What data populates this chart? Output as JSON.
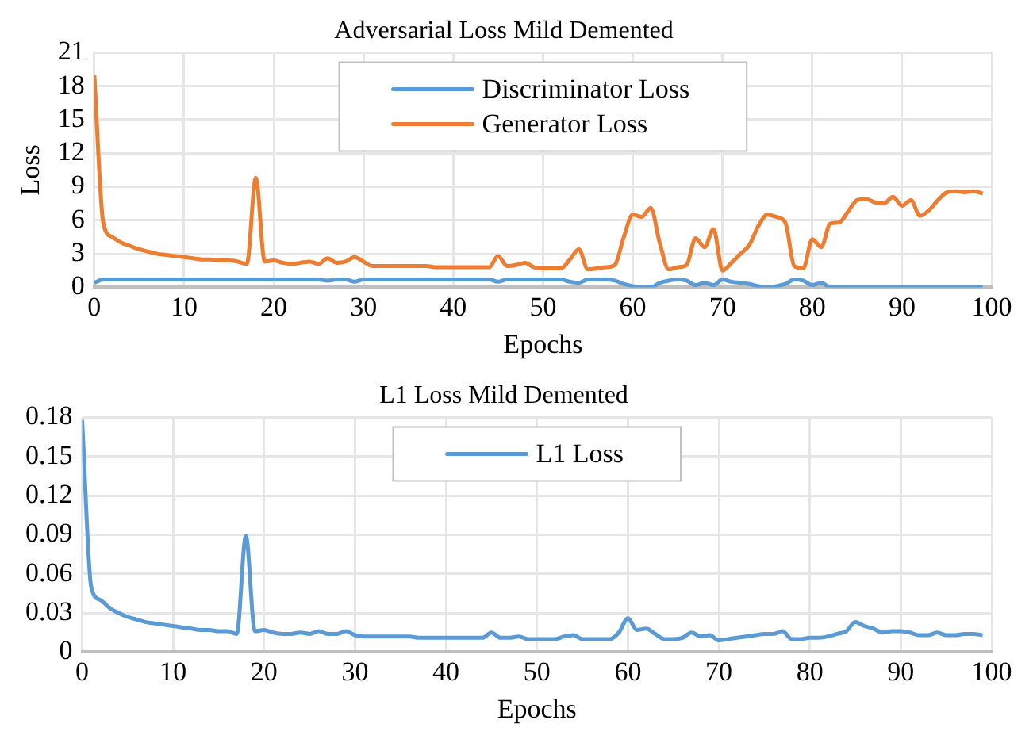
{
  "chart_data": [
    {
      "type": "line",
      "title": "Adversarial Loss Mild Demented",
      "xlabel": "Epochs",
      "ylabel": "Loss",
      "x": [
        0,
        1,
        2,
        3,
        4,
        5,
        6,
        7,
        8,
        9,
        10,
        11,
        12,
        13,
        14,
        15,
        16,
        17,
        18,
        19,
        20,
        21,
        22,
        23,
        24,
        25,
        26,
        27,
        28,
        29,
        30,
        31,
        32,
        33,
        34,
        35,
        36,
        37,
        38,
        39,
        40,
        41,
        42,
        43,
        44,
        45,
        46,
        47,
        48,
        49,
        50,
        51,
        52,
        53,
        54,
        55,
        56,
        57,
        58,
        59,
        60,
        61,
        62,
        63,
        64,
        65,
        66,
        67,
        68,
        69,
        70,
        71,
        72,
        73,
        74,
        75,
        76,
        77,
        78,
        79,
        80,
        81,
        82,
        83,
        84,
        85,
        86,
        87,
        88,
        89,
        90,
        91,
        92,
        93,
        94,
        95,
        96,
        97,
        98,
        99
      ],
      "xlim": [
        0,
        100
      ],
      "xticks": [
        0,
        10,
        20,
        30,
        40,
        50,
        60,
        70,
        80,
        90,
        100
      ],
      "ylim": [
        0,
        21
      ],
      "yticks": [
        0,
        3,
        6,
        9,
        12,
        15,
        18,
        21
      ],
      "grid": true,
      "legend": "top",
      "marker": "none",
      "line_style": "solid",
      "series": [
        {
          "name": "Discriminator Loss",
          "color": "#5b9bd5",
          "values": [
            0.4,
            0.7,
            0.7,
            0.7,
            0.7,
            0.7,
            0.7,
            0.7,
            0.7,
            0.7,
            0.7,
            0.7,
            0.7,
            0.7,
            0.7,
            0.7,
            0.7,
            0.7,
            0.7,
            0.7,
            0.7,
            0.7,
            0.7,
            0.7,
            0.7,
            0.7,
            0.6,
            0.7,
            0.7,
            0.5,
            0.7,
            0.7,
            0.7,
            0.7,
            0.7,
            0.7,
            0.7,
            0.7,
            0.7,
            0.7,
            0.7,
            0.7,
            0.7,
            0.7,
            0.7,
            0.5,
            0.7,
            0.7,
            0.7,
            0.7,
            0.7,
            0.7,
            0.7,
            0.5,
            0.4,
            0.7,
            0.7,
            0.7,
            0.6,
            0.3,
            0.1,
            0.0,
            0.0,
            0.4,
            0.6,
            0.7,
            0.6,
            0.2,
            0.4,
            0.2,
            0.7,
            0.5,
            0.4,
            0.3,
            0.1,
            0.0,
            0.1,
            0.3,
            0.7,
            0.6,
            0.2,
            0.4,
            0.0,
            0.0,
            0.0,
            0.0,
            0.0,
            0.0,
            0.0,
            0.0,
            0.0,
            0.0,
            0.0,
            0.0,
            0.0,
            0.0,
            0.0,
            0.0,
            0.0,
            0.0
          ]
        },
        {
          "name": "Generator Loss",
          "color": "#ed7d31",
          "values": [
            19,
            5.8,
            4.5,
            4.0,
            3.7,
            3.4,
            3.2,
            3.0,
            2.9,
            2.8,
            2.7,
            2.6,
            2.5,
            2.5,
            2.4,
            2.4,
            2.3,
            2.1,
            9.8,
            2.3,
            2.4,
            2.2,
            2.1,
            2.2,
            2.3,
            2.1,
            2.6,
            2.2,
            2.3,
            2.7,
            2.3,
            1.9,
            1.9,
            1.9,
            1.9,
            1.9,
            1.9,
            1.9,
            1.8,
            1.8,
            1.8,
            1.8,
            1.8,
            1.8,
            1.8,
            2.8,
            1.9,
            2.0,
            2.2,
            1.8,
            1.7,
            1.7,
            1.7,
            2.5,
            3.4,
            1.6,
            1.7,
            1.8,
            2.0,
            4.5,
            6.5,
            6.3,
            7.1,
            4.0,
            1.6,
            1.8,
            2.0,
            4.4,
            3.6,
            5.2,
            1.5,
            2.2,
            3.0,
            3.8,
            5.5,
            6.5,
            6.3,
            5.8,
            1.9,
            1.7,
            4.3,
            3.6,
            5.7,
            5.8,
            6.8,
            7.8,
            7.9,
            7.6,
            7.5,
            8.1,
            7.3,
            7.8,
            6.4,
            6.9,
            7.8,
            8.5,
            8.6,
            8.5,
            8.6,
            8.4
          ]
        }
      ]
    },
    {
      "type": "line",
      "title": "L1 Loss Mild Demented",
      "xlabel": "Epochs",
      "x": [
        0,
        1,
        2,
        3,
        4,
        5,
        6,
        7,
        8,
        9,
        10,
        11,
        12,
        13,
        14,
        15,
        16,
        17,
        18,
        19,
        20,
        21,
        22,
        23,
        24,
        25,
        26,
        27,
        28,
        29,
        30,
        31,
        32,
        33,
        34,
        35,
        36,
        37,
        38,
        39,
        40,
        41,
        42,
        43,
        44,
        45,
        46,
        47,
        48,
        49,
        50,
        51,
        52,
        53,
        54,
        55,
        56,
        57,
        58,
        59,
        60,
        61,
        62,
        63,
        64,
        65,
        66,
        67,
        68,
        69,
        70,
        71,
        72,
        73,
        74,
        75,
        76,
        77,
        78,
        79,
        80,
        81,
        82,
        83,
        84,
        85,
        86,
        87,
        88,
        89,
        90,
        91,
        92,
        93,
        94,
        95,
        96,
        97,
        98,
        99
      ],
      "xlim": [
        0,
        100
      ],
      "xticks": [
        0,
        10,
        20,
        30,
        40,
        50,
        60,
        70,
        80,
        90,
        100
      ],
      "ylim": [
        0,
        0.18
      ],
      "yticks": [
        {
          "value": 0,
          "label": "0"
        },
        {
          "value": 0.03,
          "label": "0.03"
        },
        {
          "value": 0.06,
          "label": "0.06"
        },
        {
          "value": 0.09,
          "label": "0.09"
        },
        {
          "value": 0.12,
          "label": "0.12"
        },
        {
          "value": 0.15,
          "label": "0.15"
        },
        {
          "value": 0.18,
          "label": "0.18"
        }
      ],
      "grid": true,
      "legend": "top",
      "marker": "none",
      "line_style": "solid",
      "series": [
        {
          "name": "L1 Loss",
          "color": "#5b9bd5",
          "values": [
            0.178,
            0.05,
            0.04,
            0.034,
            0.03,
            0.027,
            0.025,
            0.023,
            0.022,
            0.021,
            0.02,
            0.019,
            0.018,
            0.017,
            0.017,
            0.016,
            0.016,
            0.014,
            0.089,
            0.016,
            0.017,
            0.015,
            0.014,
            0.014,
            0.015,
            0.014,
            0.016,
            0.014,
            0.014,
            0.016,
            0.013,
            0.012,
            0.012,
            0.012,
            0.012,
            0.012,
            0.012,
            0.011,
            0.011,
            0.011,
            0.011,
            0.011,
            0.011,
            0.011,
            0.011,
            0.015,
            0.011,
            0.011,
            0.012,
            0.01,
            0.01,
            0.01,
            0.01,
            0.012,
            0.013,
            0.01,
            0.01,
            0.01,
            0.01,
            0.015,
            0.026,
            0.017,
            0.018,
            0.014,
            0.01,
            0.01,
            0.011,
            0.015,
            0.012,
            0.013,
            0.009,
            0.01,
            0.011,
            0.012,
            0.013,
            0.014,
            0.014,
            0.016,
            0.01,
            0.01,
            0.011,
            0.011,
            0.012,
            0.014,
            0.016,
            0.023,
            0.02,
            0.018,
            0.015,
            0.016,
            0.016,
            0.015,
            0.013,
            0.013,
            0.015,
            0.013,
            0.013,
            0.014,
            0.014,
            0.013
          ]
        }
      ]
    }
  ]
}
